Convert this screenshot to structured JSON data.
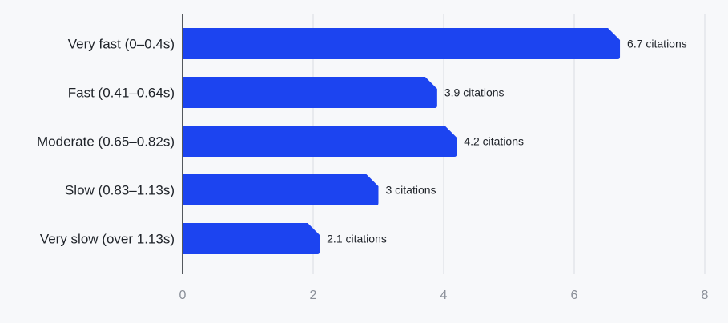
{
  "chart_data": {
    "type": "bar",
    "orientation": "horizontal",
    "title": "",
    "xlabel": "",
    "ylabel": "",
    "categories": [
      "Very fast (0–0.4s)",
      "Fast (0.41–0.64s)",
      "Moderate (0.65–0.82s)",
      "Slow (0.83–1.13s)",
      "Very slow (over 1.13s)"
    ],
    "values": [
      6.7,
      3.9,
      4.2,
      3,
      2.1
    ],
    "value_labels": [
      "6.7 citations",
      "3.9 citations",
      "4.2 citations",
      "3 citations",
      "2.1 citations"
    ],
    "xlim": [
      0,
      8
    ],
    "xticks": [
      0,
      2,
      4,
      6,
      8
    ],
    "xtick_labels": [
      "0",
      "2",
      "4",
      "6",
      "8"
    ],
    "grid": "vertical",
    "legend": "none",
    "colors": {
      "bar": "#1c44f0",
      "grid": "#e3e5e9",
      "axis": "#1f2329",
      "tick_text": "#8a8f98",
      "label_text": "#1f2329",
      "background": "#f7f8fa"
    }
  }
}
